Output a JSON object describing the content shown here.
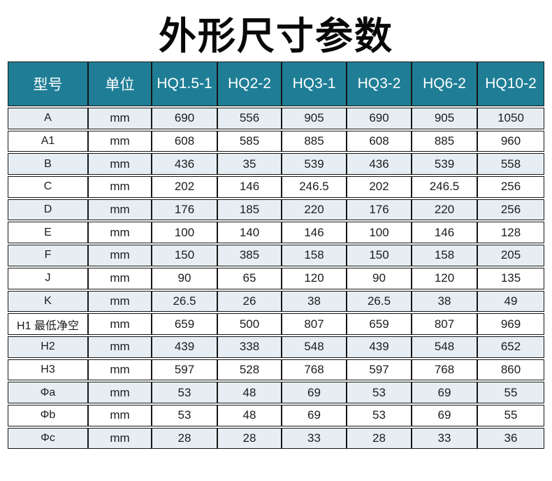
{
  "title": "外形尺寸参数",
  "colors": {
    "header_bg": "#1f7e96",
    "header_text": "#ffffff",
    "alt_row_bg": "#e6eef3",
    "border": "#161616"
  },
  "table": {
    "columns": [
      "型号",
      "单位",
      "HQ1.5-1",
      "HQ2-2",
      "HQ3-1",
      "HQ3-2",
      "HQ6-2",
      "HQ10-2"
    ],
    "rows": [
      {
        "label": "A",
        "unit": "mm",
        "values": [
          "690",
          "556",
          "905",
          "690",
          "905",
          "1050"
        ]
      },
      {
        "label": "A1",
        "unit": "mm",
        "values": [
          "608",
          "585",
          "885",
          "608",
          "885",
          "960"
        ]
      },
      {
        "label": "B",
        "unit": "mm",
        "values": [
          "436",
          "35",
          "539",
          "436",
          "539",
          "558"
        ]
      },
      {
        "label": "C",
        "unit": "mm",
        "values": [
          "202",
          "146",
          "246.5",
          "202",
          "246.5",
          "256"
        ]
      },
      {
        "label": "D",
        "unit": "mm",
        "values": [
          "176",
          "185",
          "220",
          "176",
          "220",
          "256"
        ]
      },
      {
        "label": "E",
        "unit": "mm",
        "values": [
          "100",
          "140",
          "146",
          "100",
          "146",
          "128"
        ]
      },
      {
        "label": "F",
        "unit": "mm",
        "values": [
          "150",
          "385",
          "158",
          "150",
          "158",
          "205"
        ]
      },
      {
        "label": "J",
        "unit": "mm",
        "values": [
          "90",
          "65",
          "120",
          "90",
          "120",
          "135"
        ]
      },
      {
        "label": "K",
        "unit": "mm",
        "values": [
          "26.5",
          "26",
          "38",
          "26.5",
          "38",
          "49"
        ]
      },
      {
        "label": "H1 最低净空",
        "unit": "mm",
        "values": [
          "659",
          "500",
          "807",
          "659",
          "807",
          "969"
        ]
      },
      {
        "label": "H2",
        "unit": "mm",
        "values": [
          "439",
          "338",
          "548",
          "439",
          "548",
          "652"
        ]
      },
      {
        "label": "H3",
        "unit": "mm",
        "values": [
          "597",
          "528",
          "768",
          "597",
          "768",
          "860"
        ]
      },
      {
        "label": "Φa",
        "unit": "mm",
        "values": [
          "53",
          "48",
          "69",
          "53",
          "69",
          "55"
        ]
      },
      {
        "label": "Φb",
        "unit": "mm",
        "values": [
          "53",
          "48",
          "69",
          "53",
          "69",
          "55"
        ]
      },
      {
        "label": "Φc",
        "unit": "mm",
        "values": [
          "28",
          "28",
          "33",
          "28",
          "33",
          "36"
        ]
      }
    ]
  }
}
